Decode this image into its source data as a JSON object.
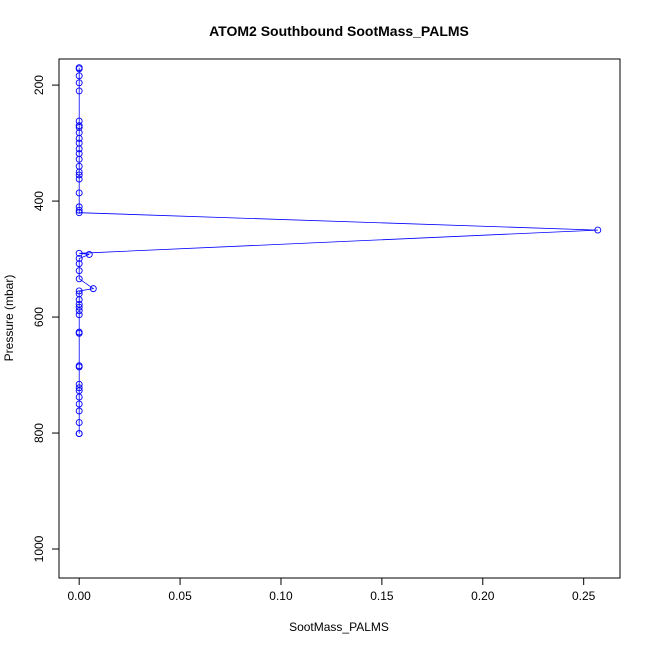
{
  "chart_data": {
    "type": "line",
    "title": "ATOM2 Southbound SootMass_PALMS",
    "xlabel": "SootMass_PALMS",
    "ylabel": "Pressure (mbar)",
    "xlim": [
      -0.01,
      0.268
    ],
    "ylim": [
      1050,
      155
    ],
    "y_reversed": true,
    "x_ticks": [
      "0.00",
      "0.05",
      "0.10",
      "0.15",
      "0.20",
      "0.25"
    ],
    "x_tick_values": [
      0,
      0.05,
      0.1,
      0.15,
      0.2,
      0.25
    ],
    "y_ticks": [
      "200",
      "400",
      "600",
      "800",
      "1000"
    ],
    "y_tick_values": [
      200,
      400,
      600,
      800,
      1000
    ],
    "grid": false,
    "color": "#0000ff",
    "series": [
      {
        "markers": "open-circle",
        "points": [
          [
            0,
            801
          ],
          [
            0,
            801
          ],
          [
            0,
            782
          ],
          [
            0,
            762
          ],
          [
            0,
            750
          ],
          [
            0,
            738
          ],
          [
            0,
            727
          ],
          [
            0,
            722
          ],
          [
            0,
            716
          ],
          [
            0,
            686
          ],
          [
            0,
            684
          ],
          [
            0,
            628
          ],
          [
            0,
            626
          ],
          [
            0,
            596
          ],
          [
            0,
            589
          ],
          [
            0,
            583
          ],
          [
            0,
            578
          ],
          [
            0,
            570
          ],
          [
            0,
            560
          ],
          [
            0,
            555
          ],
          [
            0.007,
            551
          ],
          [
            0,
            534
          ],
          [
            0,
            520
          ],
          [
            0,
            508
          ],
          [
            0,
            499
          ],
          [
            0.005,
            492
          ],
          [
            0,
            490
          ],
          [
            0.257,
            450
          ],
          [
            0,
            420
          ],
          [
            0,
            416
          ],
          [
            0,
            410
          ],
          [
            0,
            386
          ],
          [
            0,
            362
          ],
          [
            0,
            355
          ],
          [
            0,
            350
          ],
          [
            0,
            340
          ],
          [
            0,
            328
          ],
          [
            0,
            318
          ],
          [
            0,
            310
          ],
          [
            0,
            300
          ],
          [
            0,
            292
          ],
          [
            0,
            282
          ],
          [
            0,
            273
          ],
          [
            0,
            270
          ],
          [
            0,
            262
          ],
          [
            0,
            210
          ],
          [
            0,
            196
          ],
          [
            0,
            184
          ],
          [
            0,
            172
          ],
          [
            0,
            170
          ]
        ]
      }
    ]
  }
}
